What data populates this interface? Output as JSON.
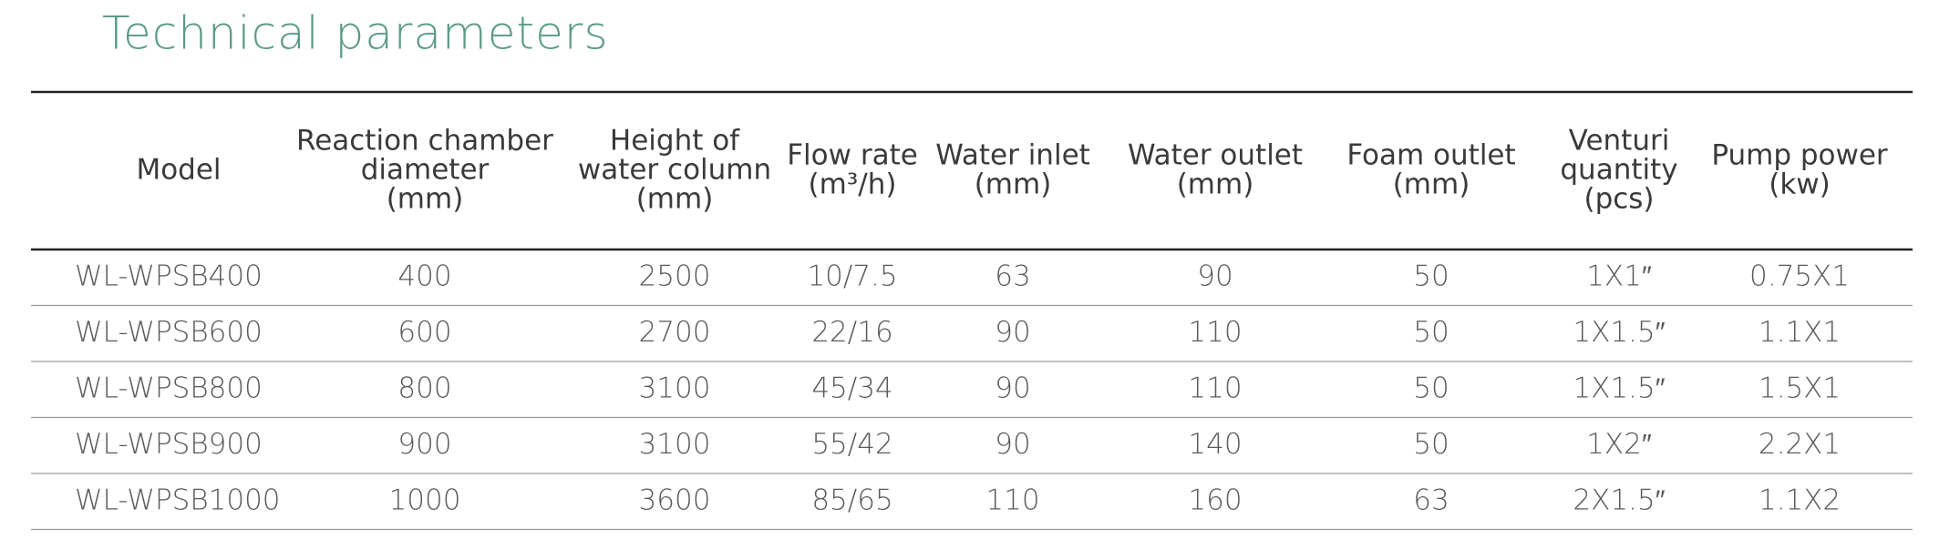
{
  "title": "Technical parameters",
  "table": {
    "headers": [
      [
        "Model"
      ],
      [
        "Reaction chamber",
        "diameter",
        "(mm)"
      ],
      [
        "Height of",
        "water column",
        "(mm)"
      ],
      [
        "Flow rate",
        "(m³/h)"
      ],
      [
        "Water inlet",
        "(mm)"
      ],
      [
        "Water outlet",
        "(mm)"
      ],
      [
        "Foam outlet",
        "(mm)"
      ],
      [
        "Venturi",
        "quantity",
        "(pcs)"
      ],
      [
        "Pump power",
        "(kw)"
      ]
    ],
    "rows": [
      [
        "WL-WPSB400",
        "400",
        "2500",
        "10/7.5",
        "63",
        "90",
        "50",
        "1X1″",
        "0.75X1"
      ],
      [
        "WL-WPSB600",
        "600",
        "2700",
        "22/16",
        "90",
        "110",
        "50",
        "1X1.5″",
        "1.1X1"
      ],
      [
        "WL-WPSB800",
        "800",
        "3100",
        "45/34",
        "90",
        "110",
        "50",
        "1X1.5″",
        "1.5X1"
      ],
      [
        "WL-WPSB900",
        "900",
        "3100",
        "55/42",
        "90",
        "140",
        "50",
        "1X2″",
        "2.2X1"
      ],
      [
        "WL-WPSB1000",
        "1000",
        "3600",
        "85/65",
        "110",
        "160",
        "63",
        "2X1.5″",
        "1.1X2"
      ]
    ]
  }
}
